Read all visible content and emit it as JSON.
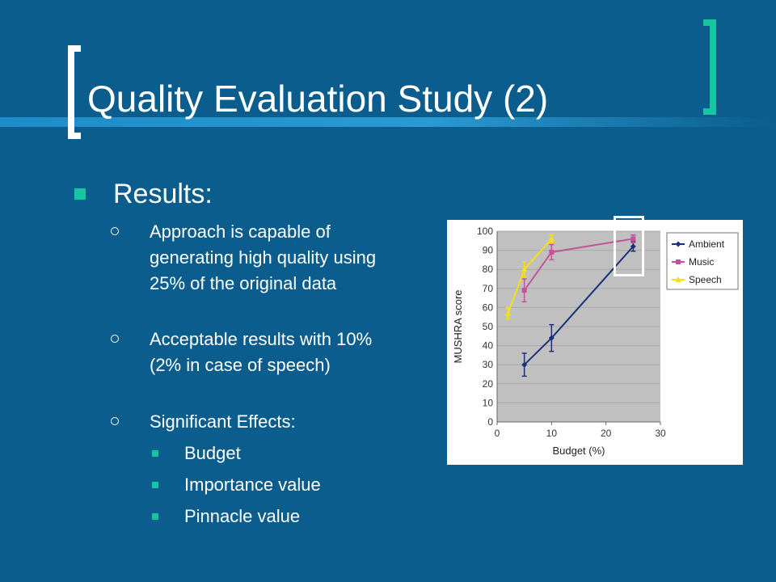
{
  "slide": {
    "title": "Quality Evaluation Study (2)",
    "results_label": "Results:",
    "sub_bullets": [
      "Approach is capable of generating high quality using 25% of the original data",
      "Acceptable results with 10% (2% in case of speech)",
      "Significant Effects:"
    ],
    "effects": [
      "Budget",
      "Importance value",
      "Pinnacle value"
    ]
  },
  "colors": {
    "background": "#0b5d8d",
    "accent": "#17c6a0",
    "ambient": "#1b2f7a",
    "music": "#c2539a",
    "speech": "#f2e01a",
    "plot_area": "#c0c0c0"
  },
  "chart_data": {
    "type": "line",
    "title": "",
    "xlabel": "Budget (%)",
    "ylabel": "MUSHRA score",
    "xlim": [
      0,
      30
    ],
    "ylim": [
      0,
      100
    ],
    "xticks": [
      "0",
      "10",
      "20",
      "30"
    ],
    "yticks": [
      "0",
      "10",
      "20",
      "30",
      "40",
      "50",
      "60",
      "70",
      "80",
      "90",
      "100"
    ],
    "grid": "horizontal",
    "legend": "right",
    "series": [
      {
        "name": "Ambient",
        "color": "#1b2f7a",
        "marker": "diamond",
        "x": [
          5,
          10,
          25
        ],
        "y": [
          30,
          44,
          92
        ],
        "err": [
          6,
          7,
          2.5
        ]
      },
      {
        "name": "Music",
        "color": "#c2539a",
        "marker": "square",
        "x": [
          5,
          10,
          25
        ],
        "y": [
          69,
          89,
          96
        ],
        "err": [
          6,
          4,
          2
        ]
      },
      {
        "name": "Speech",
        "color": "#f2e01a",
        "marker": "triangle",
        "x": [
          2,
          5,
          10
        ],
        "y": [
          57,
          80,
          96
        ],
        "err": [
          3,
          4,
          2
        ]
      }
    ]
  }
}
